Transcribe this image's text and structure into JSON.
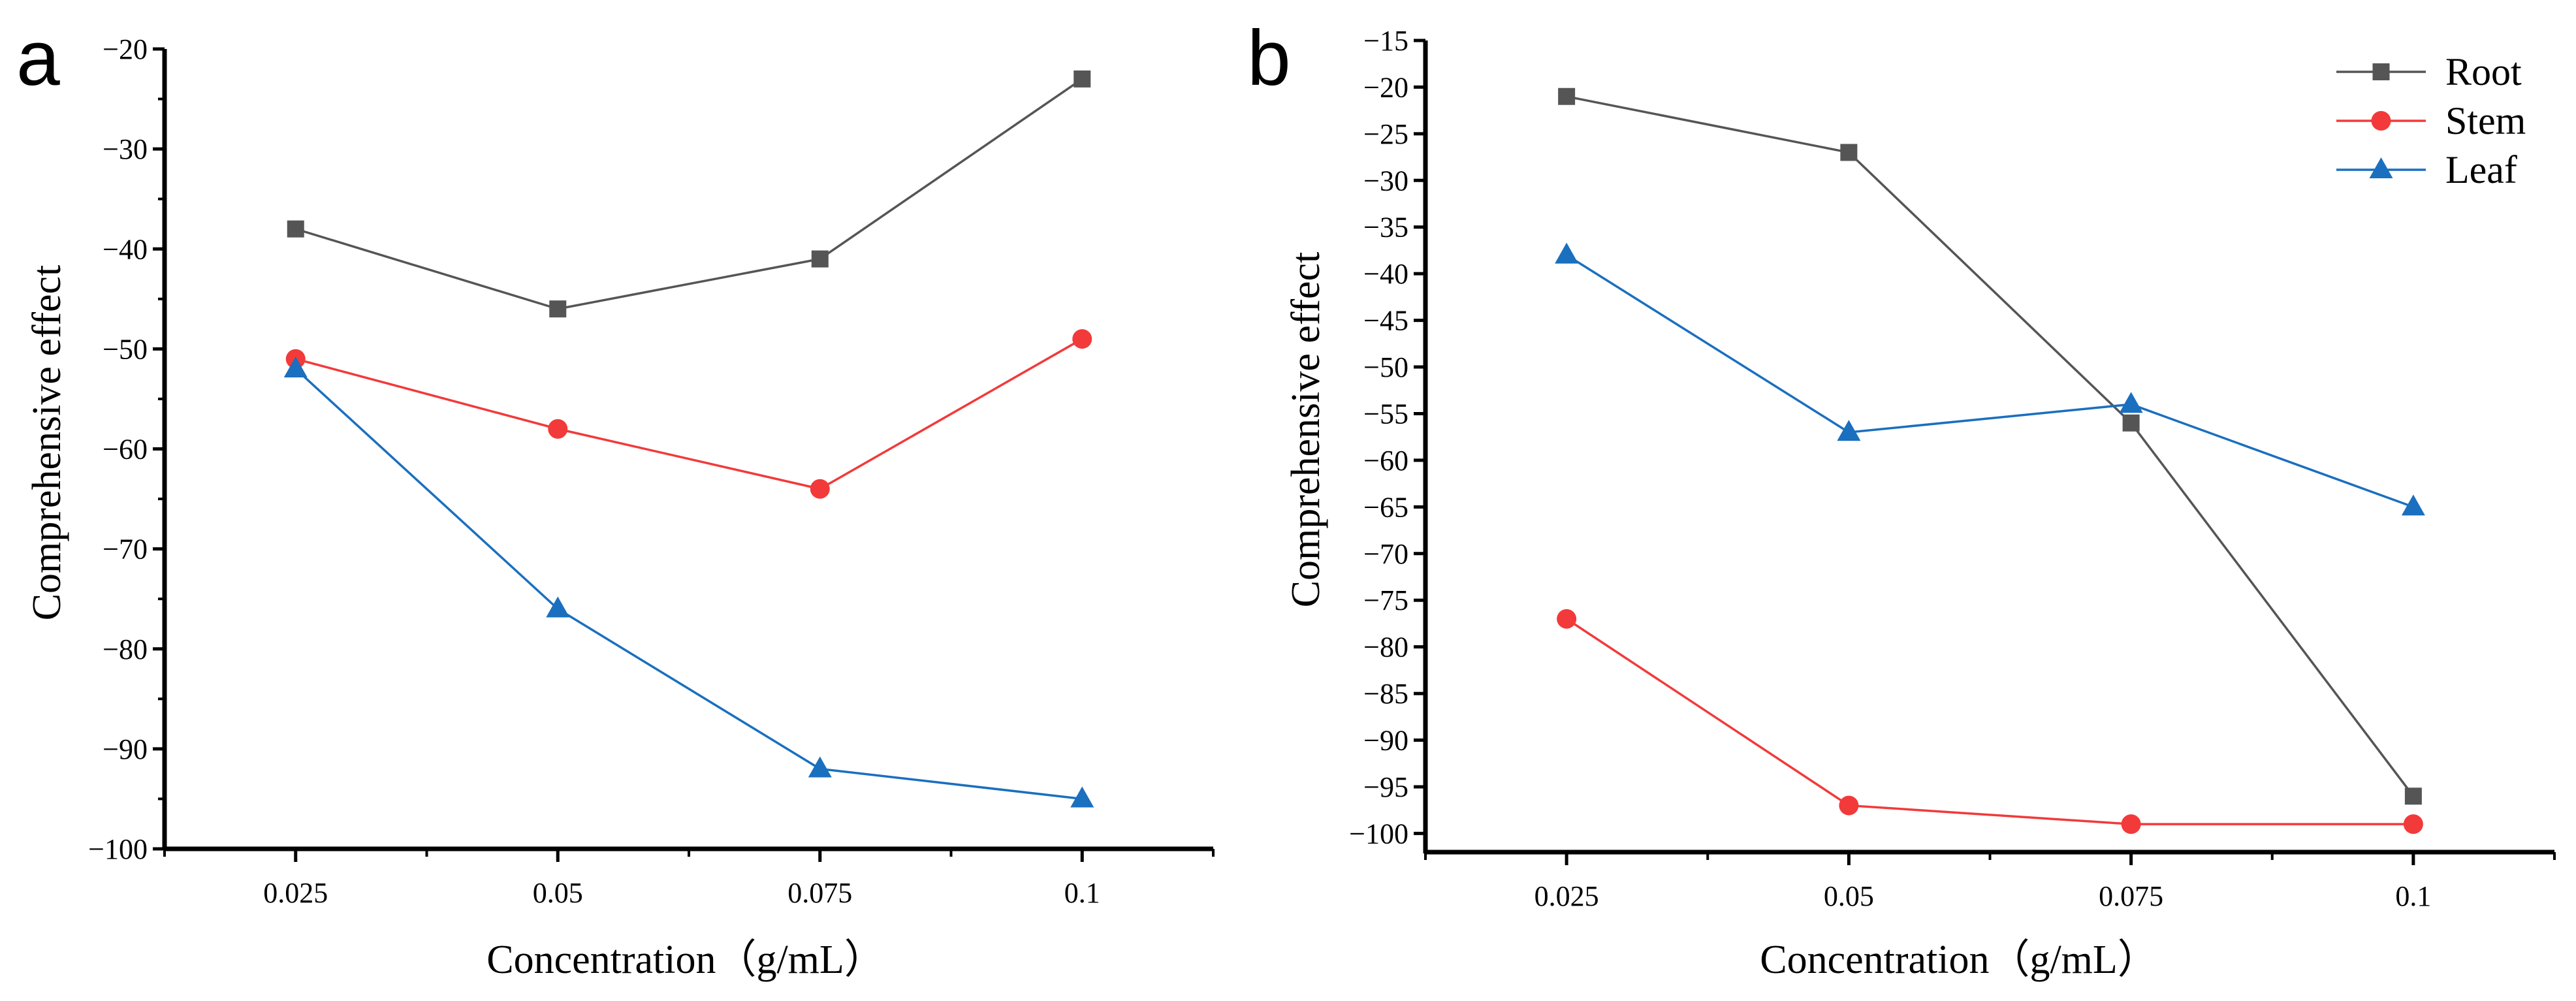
{
  "chart_data": [
    {
      "type": "line",
      "panel_label": "a",
      "x": [
        0.025,
        0.05,
        0.075,
        0.1
      ],
      "x_tick_labels": [
        "0.025",
        "0.05",
        "0.075",
        "0.1"
      ],
      "xlim": [
        0.0125,
        0.1125
      ],
      "ylim": [
        -100,
        -20
      ],
      "y_ticks": [
        -100,
        -90,
        -80,
        -70,
        -60,
        -50,
        -40,
        -30,
        -20
      ],
      "y_tick_labels": [
        "−100",
        "−90",
        "−80",
        "−70",
        "−60",
        "−50",
        "−40",
        "−30",
        "−20"
      ],
      "xlabel": "Concentration（g/mL）",
      "ylabel": "Comprehensive effect",
      "series": [
        {
          "name": "Root",
          "color": "#555555",
          "marker": "square",
          "values": [
            -38,
            -46,
            -41,
            -23
          ]
        },
        {
          "name": "Stem",
          "color": "#f23a3a",
          "marker": "circle",
          "values": [
            -51,
            -58,
            -64,
            -49
          ]
        },
        {
          "name": "Leaf",
          "color": "#1a6fbf",
          "marker": "triangle",
          "values": [
            -52,
            -76,
            -92,
            -95
          ]
        }
      ]
    },
    {
      "type": "line",
      "panel_label": "b",
      "x": [
        0.025,
        0.05,
        0.075,
        0.1
      ],
      "x_tick_labels": [
        "0.025",
        "0.05",
        "0.075",
        "0.1"
      ],
      "xlim": [
        0.0125,
        0.1125
      ],
      "ylim": [
        -102,
        -15
      ],
      "y_ticks": [
        -100,
        -95,
        -90,
        -85,
        -80,
        -75,
        -70,
        -65,
        -60,
        -55,
        -50,
        -45,
        -40,
        -35,
        -30,
        -25,
        -20,
        -15
      ],
      "y_tick_labels": [
        "−100",
        "−95",
        "−90",
        "−85",
        "−80",
        "−75",
        "−70",
        "−65",
        "−60",
        "−55",
        "−50",
        "−45",
        "−40",
        "−35",
        "−30",
        "−25",
        "−20",
        "−15"
      ],
      "xlabel": "Concentration（g/mL）",
      "ylabel": "Comprehensive effect",
      "legend": "top-right",
      "series": [
        {
          "name": "Root",
          "color": "#555555",
          "marker": "square",
          "values": [
            -21,
            -27,
            -56,
            -96
          ]
        },
        {
          "name": "Stem",
          "color": "#f23a3a",
          "marker": "circle",
          "values": [
            -77,
            -97,
            -99,
            -99
          ]
        },
        {
          "name": "Leaf",
          "color": "#1a6fbf",
          "marker": "triangle",
          "values": [
            -38,
            -57,
            -54,
            -65
          ]
        }
      ]
    }
  ]
}
